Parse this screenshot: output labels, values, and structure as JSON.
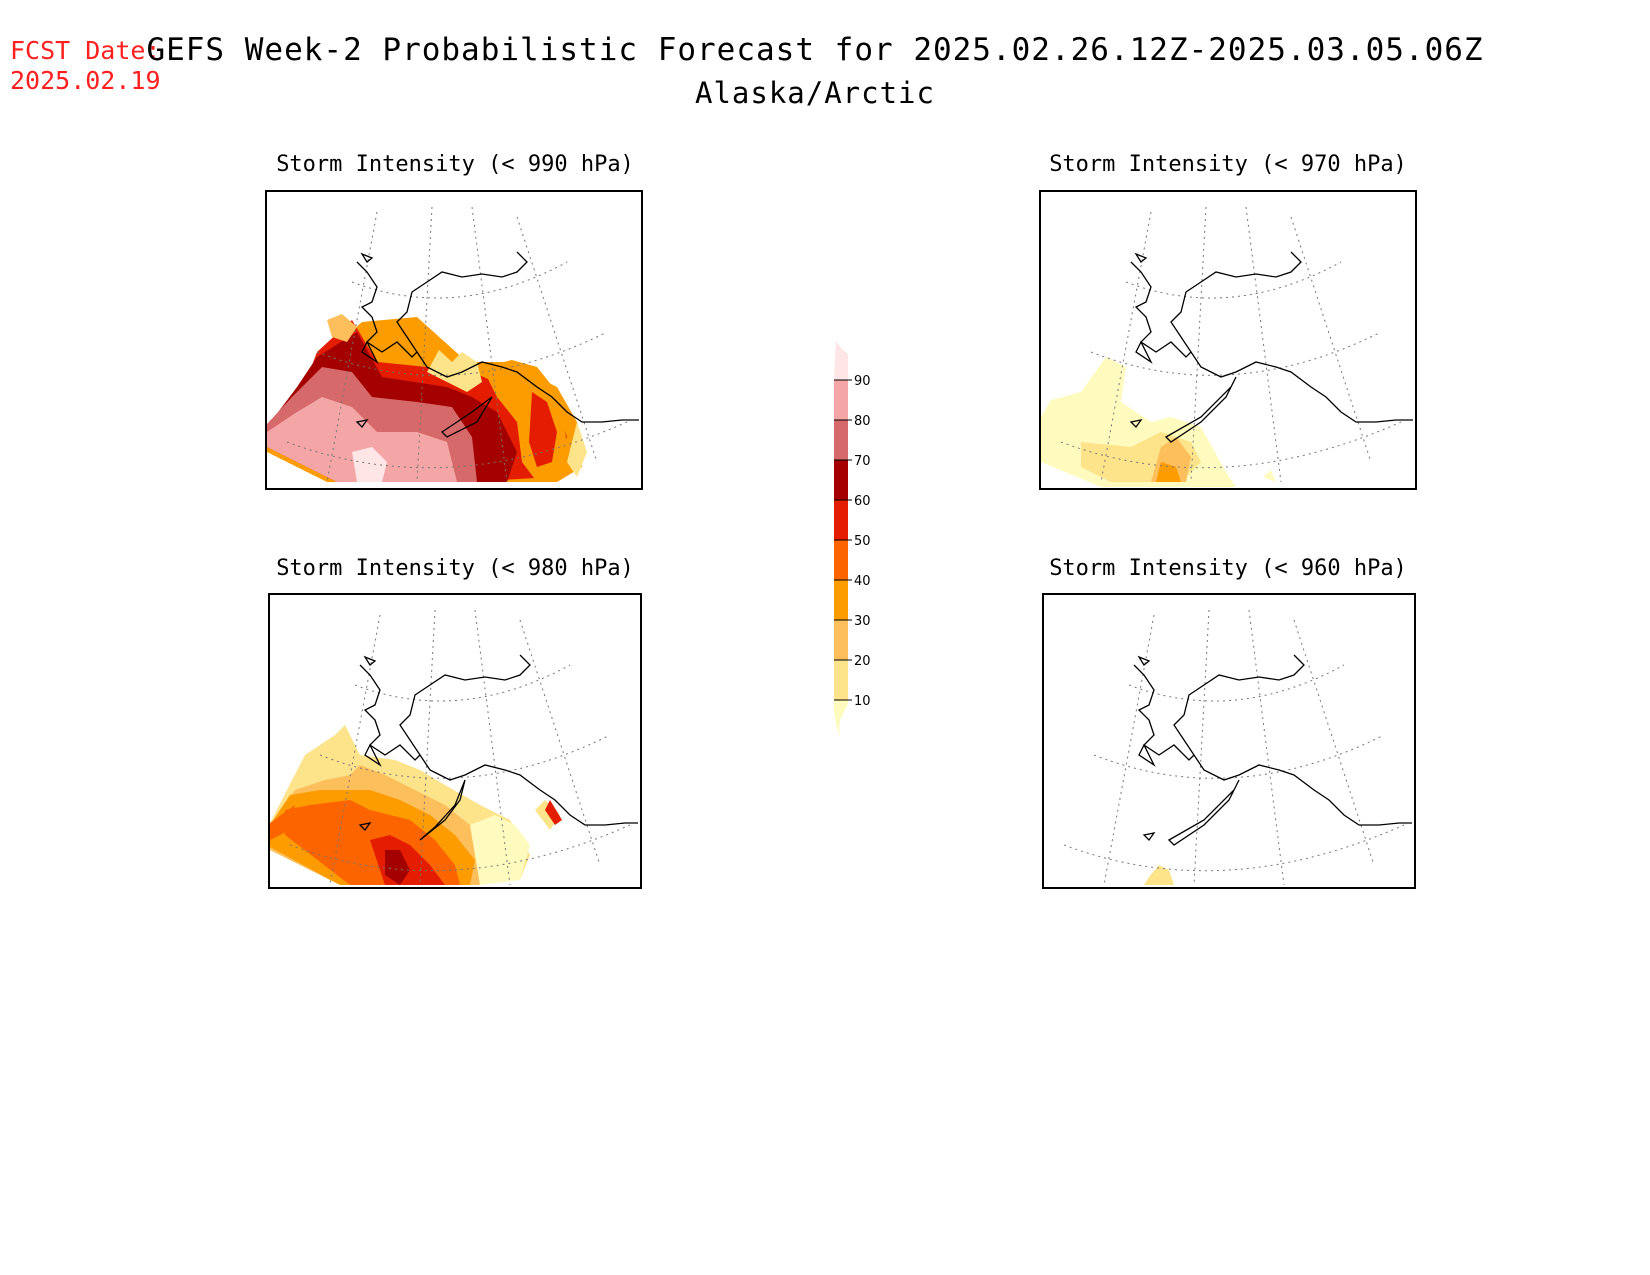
{
  "header": {
    "fcst_date_label": "FCST Date:",
    "fcst_date_value": "2025.02.19",
    "title": "GEFS Week-2 Probabilistic Forecast for 2025.02.26.12Z-2025.03.05.06Z",
    "subtitle": "Alaska/Arctic"
  },
  "panels": [
    {
      "id": "p990",
      "title": "Storm Intensity (< 990 hPa)"
    },
    {
      "id": "p970",
      "title": "Storm Intensity (< 970 hPa)"
    },
    {
      "id": "p980",
      "title": "Storm Intensity (< 980 hPa)"
    },
    {
      "id": "p960",
      "title": "Storm Intensity (< 960 hPa)"
    }
  ],
  "legend": {
    "levels": [
      "10",
      "20",
      "30",
      "40",
      "50",
      "60",
      "70",
      "80",
      "90"
    ],
    "colors": [
      "#fffbbe",
      "#fde38a",
      "#fdbf5c",
      "#fd9c00",
      "#fc6400",
      "#e51d00",
      "#a50000",
      "#d66969",
      "#f4a5a5",
      "#ffe6e6"
    ]
  }
}
